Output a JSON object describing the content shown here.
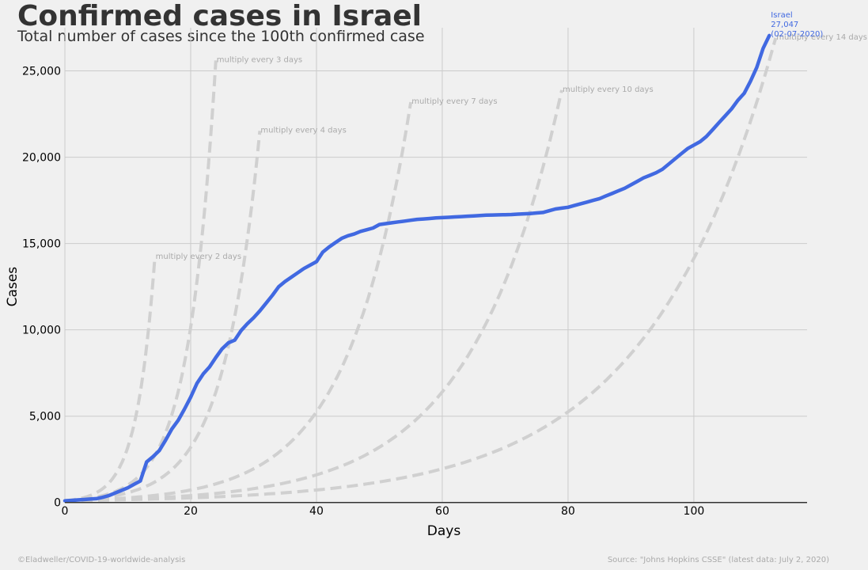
{
  "header": {
    "title": "Confirmed cases in Israel",
    "subtitle": "Total number of cases since the 100th confirmed case"
  },
  "footer": {
    "credit": "©Eladweller/COVID-19-worldwide-analysis",
    "source": "Source: \"Johns Hopkins CSSE\" (latest data: July 2, 2020)"
  },
  "colors": {
    "background": "#f0f0f0",
    "series": "#4169e1",
    "reference": "#d0d0d0",
    "reference_label": "#aaaaaa",
    "grid": "#cbcbcb",
    "baseline": "#333333"
  },
  "chart_data": {
    "type": "line",
    "title": "Confirmed cases in Israel",
    "subtitle": "Total number of cases since the 100th confirmed case",
    "xlabel": "Days",
    "ylabel": "Cases",
    "xlim": [
      0,
      118
    ],
    "ylim": [
      -700,
      27500
    ],
    "xticks": [
      0,
      20,
      40,
      60,
      80,
      100
    ],
    "yticks": [
      0,
      5000,
      10000,
      15000,
      20000,
      25000
    ],
    "grid": true,
    "series": [
      {
        "name": "Israel",
        "x": [
          0,
          1,
          2,
          3,
          4,
          5,
          6,
          7,
          8,
          9,
          10,
          11,
          12,
          13,
          14,
          15,
          16,
          17,
          18,
          19,
          20,
          21,
          22,
          23,
          24,
          25,
          26,
          27,
          28,
          29,
          30,
          31,
          32,
          33,
          34,
          35,
          36,
          37,
          38,
          39,
          40,
          41,
          42,
          43,
          44,
          45,
          46,
          47,
          48,
          49,
          50,
          51,
          52,
          53,
          54,
          55,
          56,
          57,
          58,
          59,
          60,
          61,
          62,
          63,
          64,
          65,
          66,
          67,
          68,
          69,
          70,
          71,
          72,
          73,
          74,
          75,
          76,
          77,
          78,
          79,
          80,
          81,
          82,
          83,
          84,
          85,
          86,
          87,
          88,
          89,
          90,
          91,
          92,
          93,
          94,
          95,
          96,
          97,
          98,
          99,
          100,
          101,
          102,
          103,
          104,
          105,
          106,
          107,
          108,
          109,
          110,
          111,
          112
        ],
        "y": [
          100,
          120,
          150,
          170,
          200,
          220,
          300,
          400,
          550,
          700,
          850,
          1050,
          1250,
          2350,
          2650,
          3000,
          3600,
          4250,
          4750,
          5400,
          6100,
          6900,
          7450,
          7850,
          8400,
          8900,
          9250,
          9400,
          9950,
          10350,
          10700,
          11100,
          11550,
          12000,
          12500,
          12800,
          13050,
          13300,
          13550,
          13750,
          13950,
          14500,
          14800,
          15050,
          15300,
          15450,
          15550,
          15700,
          15800,
          15900,
          16100,
          16150,
          16200,
          16250,
          16300,
          16350,
          16400,
          16420,
          16450,
          16480,
          16500,
          16520,
          16540,
          16560,
          16580,
          16600,
          16620,
          16640,
          16650,
          16660,
          16670,
          16680,
          16700,
          16720,
          16740,
          16770,
          16800,
          16900,
          17000,
          17050,
          17100,
          17200,
          17300,
          17400,
          17500,
          17600,
          17750,
          17900,
          18050,
          18200,
          18400,
          18600,
          18800,
          18950,
          19100,
          19300,
          19600,
          19900,
          20200,
          20500,
          20700,
          20900,
          21200,
          21600,
          22000,
          22400,
          22800,
          23300,
          23700,
          24400,
          25200,
          26300,
          27047
        ]
      }
    ],
    "end_label": {
      "name": "Israel",
      "value": "27,047",
      "date": "(02-07-2020)"
    },
    "reference_lines": [
      {
        "label": "multiply every 2 days",
        "doubling_days": 2,
        "end_x": 14.3
      },
      {
        "label": "multiply every 3 days",
        "doubling_days": 3,
        "end_x": 24
      },
      {
        "label": "multiply every 4 days",
        "doubling_days": 4,
        "end_x": 31
      },
      {
        "label": "multiply every 7 days",
        "doubling_days": 7,
        "end_x": 55
      },
      {
        "label": "multiply every 10 days",
        "doubling_days": 10,
        "end_x": 79
      },
      {
        "label": "multiply every 14 days",
        "doubling_days": 14,
        "end_x": 113
      }
    ]
  }
}
